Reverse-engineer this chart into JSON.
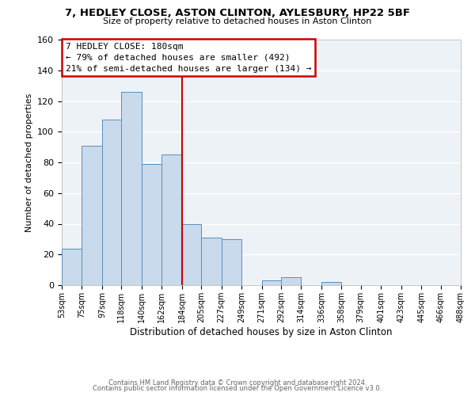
{
  "title": "7, HEDLEY CLOSE, ASTON CLINTON, AYLESBURY, HP22 5BF",
  "subtitle": "Size of property relative to detached houses in Aston Clinton",
  "xlabel": "Distribution of detached houses by size in Aston Clinton",
  "ylabel": "Number of detached properties",
  "bar_color": "#c8daeb",
  "bar_edge_color": "#5a8fbf",
  "bin_edges": [
    53,
    75,
    97,
    118,
    140,
    162,
    184,
    205,
    227,
    249,
    271,
    292,
    314,
    336,
    358,
    379,
    401,
    423,
    445,
    466,
    488
  ],
  "bin_labels": [
    "53sqm",
    "75sqm",
    "97sqm",
    "118sqm",
    "140sqm",
    "162sqm",
    "184sqm",
    "205sqm",
    "227sqm",
    "249sqm",
    "271sqm",
    "292sqm",
    "314sqm",
    "336sqm",
    "358sqm",
    "379sqm",
    "401sqm",
    "423sqm",
    "445sqm",
    "466sqm",
    "488sqm"
  ],
  "counts": [
    24,
    91,
    108,
    126,
    79,
    85,
    40,
    31,
    30,
    0,
    3,
    5,
    0,
    2,
    0,
    0,
    0,
    0,
    0,
    0
  ],
  "ylim": [
    0,
    160
  ],
  "yticks": [
    0,
    20,
    40,
    60,
    80,
    100,
    120,
    140,
    160
  ],
  "ref_line_x": 184,
  "annotation_title": "7 HEDLEY CLOSE: 180sqm",
  "annotation_line1": "← 79% of detached houses are smaller (492)",
  "annotation_line2": "21% of semi-detached houses are larger (134) →",
  "annotation_box_color": "#ffffff",
  "annotation_box_edge": "#cc0000",
  "ref_line_color": "#cc0000",
  "background_color": "#edf2f7",
  "footer1": "Contains HM Land Registry data © Crown copyright and database right 2024.",
  "footer2": "Contains public sector information licensed under the Open Government Licence v3.0."
}
